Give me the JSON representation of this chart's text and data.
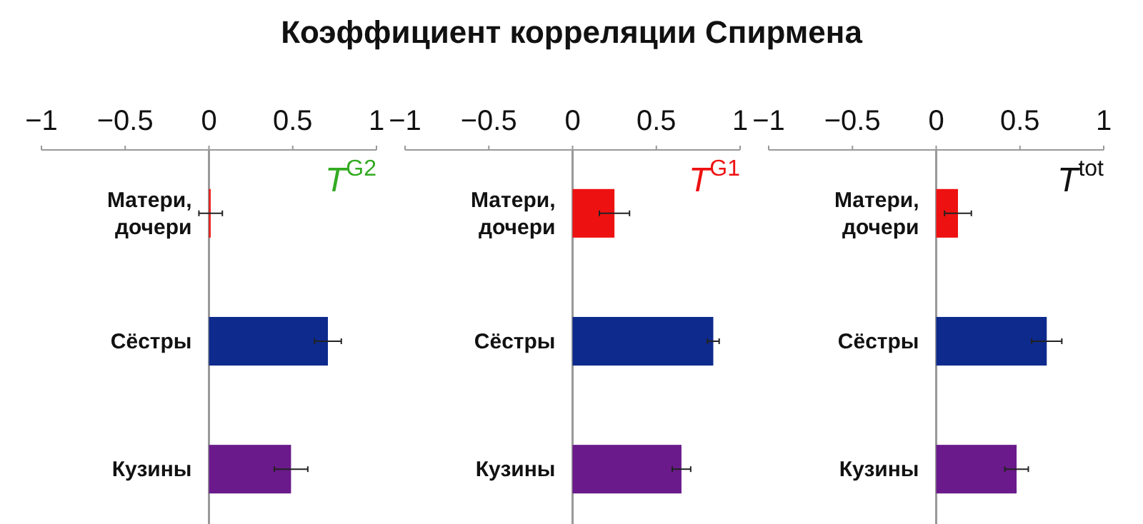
{
  "chart_data": [
    {
      "type": "bar",
      "orientation": "horizontal",
      "title": "Коэффициент корреляции Спирмена",
      "annotations": [
        "T$^{G2}$"
      ],
      "categories": [
        "Матери, дочери",
        "Сёстры",
        "Кузины"
      ],
      "values": [
        0.01,
        0.71,
        0.49
      ],
      "errors": [
        0.07,
        0.08,
        0.1
      ],
      "colors": [
        "#ee1111",
        "#0d2a8c",
        "#6a1a8a"
      ],
      "xlim": [
        -1,
        1
      ],
      "xticks": [
        -1,
        -0.5,
        0,
        0.5,
        1
      ]
    },
    {
      "type": "bar",
      "orientation": "horizontal",
      "annotations": [
        "T$^{G1}$"
      ],
      "categories": [
        "Матери, дочери",
        "Сёстры",
        "Кузины"
      ],
      "values": [
        0.25,
        0.84,
        0.65
      ],
      "errors": [
        0.09,
        0.035,
        0.055
      ],
      "colors": [
        "#ee1111",
        "#0d2a8c",
        "#6a1a8a"
      ],
      "xlim": [
        -1,
        1
      ],
      "xticks": [
        -1,
        -0.5,
        0,
        0.5,
        1
      ]
    },
    {
      "type": "bar",
      "orientation": "horizontal",
      "annotations": [
        "T$^{tot}$"
      ],
      "categories": [
        "Матери, дочери",
        "Сёстры",
        "Кузины"
      ],
      "values": [
        0.13,
        0.66,
        0.48
      ],
      "errors": [
        0.08,
        0.09,
        0.07
      ],
      "colors": [
        "#ee1111",
        "#0d2a8c",
        "#6a1a8a"
      ],
      "xlim": [
        -1,
        1
      ],
      "xticks": [
        -1,
        -0.5,
        0,
        0.5,
        1
      ]
    }
  ]
}
